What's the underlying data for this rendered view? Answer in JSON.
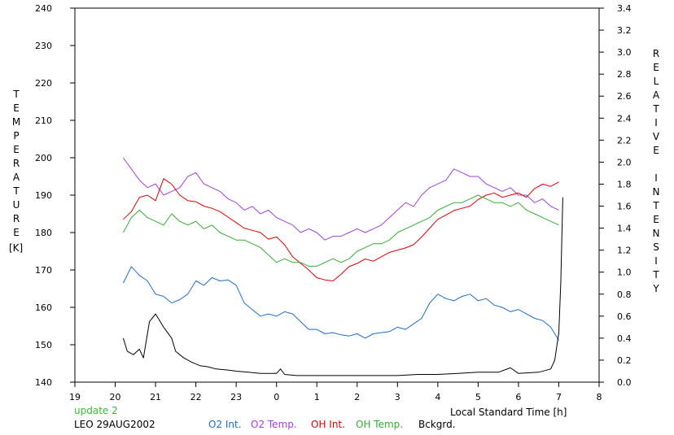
{
  "chart_data": {
    "type": "line",
    "left_axis_title": "TEMPERATURE",
    "left_axis_unit": "[K]",
    "right_axis_title": "RELATIVE INTENSITY",
    "xlabel": "Local Standard Time [h]",
    "x_ticks": [
      "19",
      "20",
      "21",
      "22",
      "23",
      "0",
      "1",
      "2",
      "3",
      "4",
      "5",
      "6",
      "7",
      "8"
    ],
    "x_range": [
      19,
      32
    ],
    "ylim_left": [
      140,
      240
    ],
    "ylim_right": [
      0.0,
      3.4
    ],
    "y_ticks_left": [
      "140",
      "150",
      "160",
      "170",
      "180",
      "190",
      "200",
      "210",
      "220",
      "230",
      "240"
    ],
    "y_ticks_right": [
      "0.0",
      "0.2",
      "0.4",
      "0.6",
      "0.8",
      "1.0",
      "1.2",
      "1.4",
      "1.6",
      "1.8",
      "2.0",
      "2.2",
      "2.4",
      "2.6",
      "2.8",
      "3.0",
      "3.2",
      "3.4"
    ],
    "grid": false,
    "update_label": "update 2",
    "station_label": "LEO 29AUG2002",
    "series": [
      {
        "name": "O2 Int.",
        "axis": "right",
        "color": "#1a6fd1",
        "x": [
          20.2,
          20.4,
          20.6,
          20.8,
          21.0,
          21.2,
          21.4,
          21.6,
          21.8,
          22.0,
          22.2,
          22.4,
          22.6,
          22.8,
          23.0,
          23.2,
          23.4,
          23.6,
          23.8,
          24.0,
          24.2,
          24.4,
          24.6,
          24.8,
          25.0,
          25.2,
          25.4,
          25.6,
          25.8,
          26.0,
          26.2,
          26.4,
          26.6,
          26.8,
          27.0,
          27.2,
          27.4,
          27.6,
          27.8,
          28.0,
          28.2,
          28.4,
          28.6,
          28.8,
          29.0,
          29.2,
          29.4,
          29.6,
          29.8,
          30.0,
          30.2,
          30.4,
          30.6,
          30.8,
          31.0
        ],
        "values": [
          0.9,
          1.05,
          0.97,
          0.92,
          0.8,
          0.78,
          0.72,
          0.75,
          0.8,
          0.92,
          0.88,
          0.95,
          0.92,
          0.93,
          0.88,
          0.72,
          0.66,
          0.6,
          0.62,
          0.6,
          0.64,
          0.62,
          0.55,
          0.48,
          0.48,
          0.44,
          0.45,
          0.43,
          0.42,
          0.44,
          0.4,
          0.44,
          0.45,
          0.46,
          0.5,
          0.48,
          0.53,
          0.58,
          0.72,
          0.8,
          0.76,
          0.74,
          0.78,
          0.8,
          0.74,
          0.76,
          0.7,
          0.68,
          0.64,
          0.66,
          0.62,
          0.58,
          0.56,
          0.5,
          0.38
        ]
      },
      {
        "name": "O2 Temp.",
        "axis": "left",
        "color": "#a040e0",
        "x": [
          20.2,
          20.4,
          20.6,
          20.8,
          21.0,
          21.2,
          21.4,
          21.6,
          21.8,
          22.0,
          22.2,
          22.4,
          22.6,
          22.8,
          23.0,
          23.2,
          23.4,
          23.6,
          23.8,
          24.0,
          24.2,
          24.4,
          24.6,
          24.8,
          25.0,
          25.2,
          25.4,
          25.6,
          25.8,
          26.0,
          26.2,
          26.4,
          26.6,
          26.8,
          27.0,
          27.2,
          27.4,
          27.6,
          27.8,
          28.0,
          28.2,
          28.4,
          28.6,
          28.8,
          29.0,
          29.2,
          29.4,
          29.6,
          29.8,
          30.0,
          30.2,
          30.4,
          30.6,
          30.8,
          31.0
        ],
        "values": [
          200,
          197,
          194,
          192,
          193,
          190,
          191,
          192,
          195,
          196,
          193,
          192,
          191,
          189,
          188,
          186,
          187,
          185,
          186,
          184,
          183,
          182,
          180,
          181,
          180,
          178,
          179,
          179,
          180,
          181,
          180,
          181,
          182,
          184,
          186,
          188,
          187,
          190,
          192,
          193,
          194,
          197,
          196,
          195,
          195,
          193,
          192,
          191,
          192,
          190,
          190,
          188,
          189,
          187,
          186
        ]
      },
      {
        "name": "OH Int.",
        "axis": "right",
        "color": "#e00000",
        "x": [
          20.2,
          20.4,
          20.6,
          20.8,
          21.0,
          21.2,
          21.4,
          21.6,
          21.8,
          22.0,
          22.2,
          22.4,
          22.6,
          22.8,
          23.0,
          23.2,
          23.4,
          23.6,
          23.8,
          24.0,
          24.2,
          24.4,
          24.6,
          24.8,
          25.0,
          25.2,
          25.4,
          25.6,
          25.8,
          26.0,
          26.2,
          26.4,
          26.6,
          26.8,
          27.0,
          27.2,
          27.4,
          27.6,
          27.8,
          28.0,
          28.2,
          28.4,
          28.6,
          28.8,
          29.0,
          29.2,
          29.4,
          29.6,
          29.8,
          30.0,
          30.2,
          30.4,
          30.6,
          30.8,
          31.0
        ],
        "values": [
          1.48,
          1.55,
          1.68,
          1.7,
          1.65,
          1.85,
          1.8,
          1.7,
          1.65,
          1.64,
          1.6,
          1.58,
          1.55,
          1.5,
          1.45,
          1.4,
          1.38,
          1.36,
          1.3,
          1.32,
          1.25,
          1.14,
          1.08,
          1.02,
          0.95,
          0.93,
          0.92,
          0.98,
          1.05,
          1.08,
          1.12,
          1.1,
          1.14,
          1.18,
          1.2,
          1.22,
          1.25,
          1.32,
          1.4,
          1.48,
          1.52,
          1.56,
          1.58,
          1.6,
          1.66,
          1.7,
          1.72,
          1.68,
          1.7,
          1.72,
          1.68,
          1.76,
          1.8,
          1.78,
          1.82
        ]
      },
      {
        "name": "OH Temp.",
        "axis": "left",
        "color": "#30b030",
        "x": [
          20.2,
          20.4,
          20.6,
          20.8,
          21.0,
          21.2,
          21.4,
          21.6,
          21.8,
          22.0,
          22.2,
          22.4,
          22.6,
          22.8,
          23.0,
          23.2,
          23.4,
          23.6,
          23.8,
          24.0,
          24.2,
          24.4,
          24.6,
          24.8,
          25.0,
          25.2,
          25.4,
          25.6,
          25.8,
          26.0,
          26.2,
          26.4,
          26.6,
          26.8,
          27.0,
          27.2,
          27.4,
          27.6,
          27.8,
          28.0,
          28.2,
          28.4,
          28.6,
          28.8,
          29.0,
          29.2,
          29.4,
          29.6,
          29.8,
          30.0,
          30.2,
          30.4,
          30.6,
          30.8,
          31.0
        ],
        "values": [
          180,
          184,
          186,
          184,
          183,
          182,
          185,
          183,
          182,
          183,
          181,
          182,
          180,
          179,
          178,
          178,
          177,
          176,
          174,
          172,
          173,
          172,
          172,
          171,
          171,
          172,
          173,
          172,
          173,
          175,
          176,
          177,
          177,
          178,
          180,
          181,
          182,
          183,
          184,
          186,
          187,
          188,
          188,
          189,
          190,
          189,
          188,
          188,
          187,
          188,
          186,
          185,
          184,
          183,
          182
        ]
      },
      {
        "name": "Bckgrd.",
        "axis": "right",
        "color": "#000000",
        "x": [
          20.2,
          20.3,
          20.45,
          20.6,
          20.7,
          20.85,
          21.0,
          21.2,
          21.4,
          21.5,
          21.7,
          21.9,
          22.1,
          22.3,
          22.5,
          22.8,
          23.0,
          23.3,
          23.6,
          23.8,
          24.0,
          24.1,
          24.2,
          24.5,
          25.0,
          25.5,
          26.0,
          26.5,
          27.0,
          27.5,
          28.0,
          28.5,
          29.0,
          29.5,
          29.8,
          30.0,
          30.5,
          30.8,
          30.9,
          31.0,
          31.05,
          31.1
        ],
        "values": [
          0.4,
          0.28,
          0.25,
          0.3,
          0.22,
          0.55,
          0.62,
          0.5,
          0.4,
          0.28,
          0.22,
          0.18,
          0.15,
          0.14,
          0.12,
          0.11,
          0.1,
          0.09,
          0.08,
          0.08,
          0.08,
          0.12,
          0.07,
          0.06,
          0.06,
          0.06,
          0.06,
          0.06,
          0.06,
          0.07,
          0.07,
          0.08,
          0.09,
          0.09,
          0.13,
          0.08,
          0.09,
          0.12,
          0.2,
          0.45,
          0.9,
          1.68
        ]
      }
    ]
  }
}
